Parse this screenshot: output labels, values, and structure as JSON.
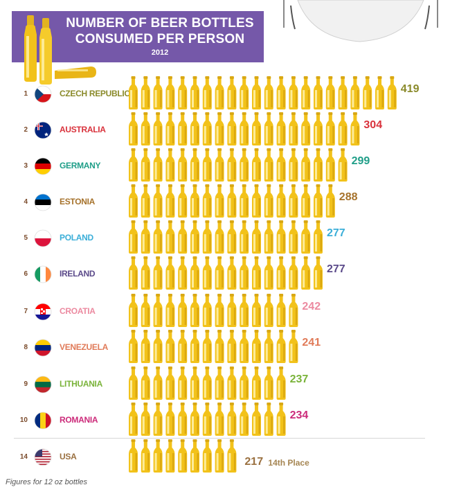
{
  "title": {
    "line1": "NUMBER OF BEER BOTTLES",
    "line2": "CONSUMED PER PERSON",
    "year": "2012"
  },
  "footnote": "Figures for 12 oz bottles",
  "usa_place": "14th Place",
  "colors": {
    "banner": "#7558a9",
    "bottle_body": "#f2c21a",
    "bottle_highlight": "#fff3b0",
    "bottle_shadow": "#c8940a"
  },
  "icons": [
    "beer-bottle-icon",
    "table-icon"
  ],
  "chart_data": {
    "type": "bar",
    "title": "NUMBER OF BEER BOTTLES CONSUMED PER PERSON 2012",
    "xlabel": "",
    "ylabel": "",
    "unit_note": "Figures for 12 oz bottles",
    "series": [
      {
        "values": [
          419,
          304,
          299,
          288,
          277,
          277,
          242,
          241,
          237,
          234,
          217
        ]
      }
    ],
    "rows": [
      {
        "rank": "1",
        "country": "CZECH REPUBLIC",
        "value": 419,
        "value_label": "419",
        "color": "#8a8a2a",
        "bottles": 22
      },
      {
        "rank": "2",
        "country": "AUSTRALIA",
        "value": 304,
        "value_label": "304",
        "color": "#d9323c",
        "bottles": 19
      },
      {
        "rank": "3",
        "country": "GERMANY",
        "value": 299,
        "value_label": "299",
        "color": "#1f9e88",
        "bottles": 18
      },
      {
        "rank": "4",
        "country": "ESTONIA",
        "value": 288,
        "value_label": "288",
        "color": "#a6722b",
        "bottles": 17
      },
      {
        "rank": "5",
        "country": "POLAND",
        "value": 277,
        "value_label": "277",
        "color": "#3aaed8",
        "bottles": 16
      },
      {
        "rank": "6",
        "country": "IRELAND",
        "value": 277,
        "value_label": "277",
        "color": "#5b4a8a",
        "bottles": 16
      },
      {
        "rank": "7",
        "country": "CROATIA",
        "value": 242,
        "value_label": "242",
        "color": "#ec8aa0",
        "bottles": 14
      },
      {
        "rank": "8",
        "country": "VENEZUELA",
        "value": 241,
        "value_label": "241",
        "color": "#e07a58",
        "bottles": 14
      },
      {
        "rank": "9",
        "country": "LITHUANIA",
        "value": 237,
        "value_label": "237",
        "color": "#7ab33a",
        "bottles": 13
      },
      {
        "rank": "10",
        "country": "ROMANIA",
        "value": 234,
        "value_label": "234",
        "color": "#cc2b7a",
        "bottles": 13
      },
      {
        "rank": "14",
        "country": "USA",
        "value": 217,
        "value_label": "217",
        "color": "#9a7040",
        "bottles": 9
      }
    ]
  }
}
